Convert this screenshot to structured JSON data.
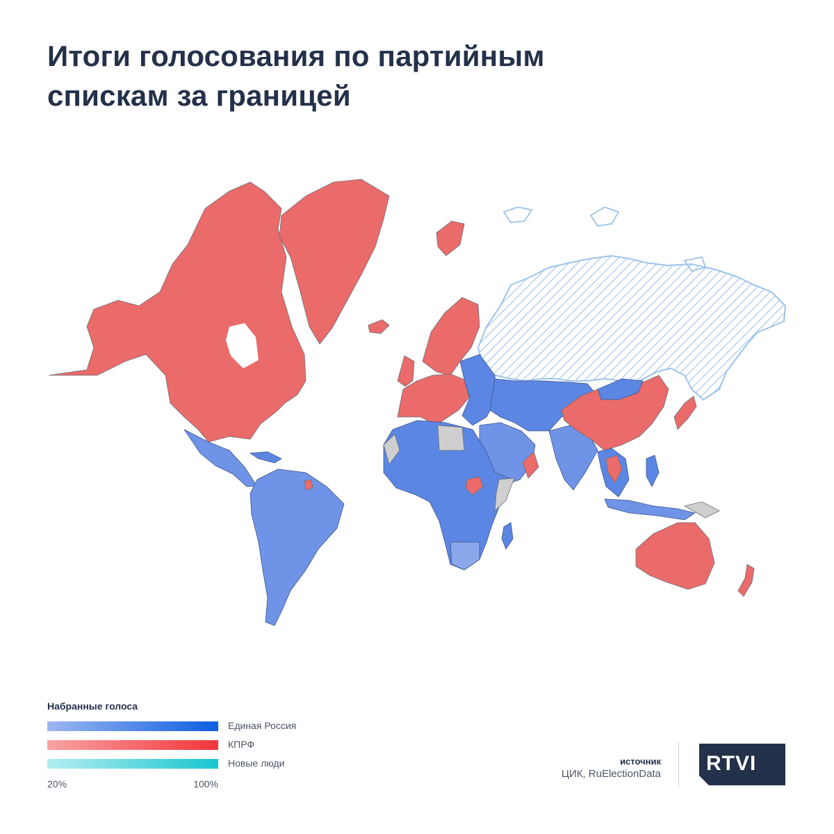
{
  "title": {
    "line1": "Итоги голосования по партийным",
    "line2": "спискам за границей"
  },
  "colors": {
    "edinaya_rossiya": "#4f7be0",
    "kprf": "#ea6b6a",
    "novye_lyudi": "#4fd3dc",
    "no_data": "#cfcfcf",
    "russia_hatch": "#9cc3ea"
  },
  "map": {
    "russia_pattern": "diagonal-hatch",
    "regions": [
      {
        "name": "North America",
        "party": "КПРФ"
      },
      {
        "name": "Greenland",
        "party": "КПРФ"
      },
      {
        "name": "Iceland",
        "party": "КПРФ"
      },
      {
        "name": "Western Europe",
        "party": "КПРФ"
      },
      {
        "name": "Scandinavia",
        "party": "КПРФ"
      },
      {
        "name": "Eastern Europe",
        "party": "Единая Россия"
      },
      {
        "name": "Central Asia",
        "party": "Единая Россия"
      },
      {
        "name": "Middle East",
        "party": "Единая Россия"
      },
      {
        "name": "Africa",
        "party": "Единая Россия"
      },
      {
        "name": "Latin America",
        "party": "Единая Россия"
      },
      {
        "name": "China",
        "party": "КПРФ"
      },
      {
        "name": "Japan",
        "party": "КПРФ"
      },
      {
        "name": "India",
        "party": "Единая Россия"
      },
      {
        "name": "Southeast Asia",
        "party": "Единая Россия"
      },
      {
        "name": "Australia",
        "party": "КПРФ"
      },
      {
        "name": "New Zealand",
        "party": "КПРФ"
      }
    ]
  },
  "legend": {
    "title": "Набранные голоса",
    "items": [
      {
        "label": "Единая Россия",
        "from": "#9db7f0",
        "to": "#0d5ee0"
      },
      {
        "label": "КПРФ",
        "from": "#f7a3a3",
        "to": "#f2353a"
      },
      {
        "label": "Новые люди",
        "from": "#b4eef0",
        "to": "#18c6cf"
      }
    ],
    "scale_min": "20%",
    "scale_max": "100%"
  },
  "source": {
    "label": "источник",
    "text": "ЦИК, RuElectionData"
  },
  "logo": {
    "text": "RTVI",
    "color": "#24314a"
  }
}
